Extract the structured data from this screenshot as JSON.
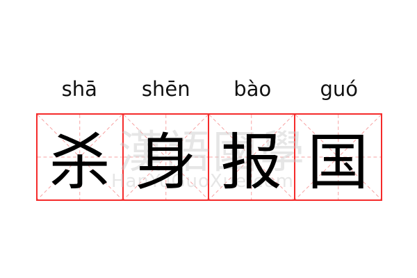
{
  "pinyin": [
    "shā",
    "shēn",
    "bào",
    "guó"
  ],
  "characters": [
    "杀",
    "身",
    "报",
    "国"
  ],
  "watermark": {
    "chinese": "漢語國學",
    "latin": "HanYuGuoXue.com"
  },
  "colors": {
    "grid": "#f52a2a",
    "guides": "#f7a0a0",
    "text": "#000000"
  }
}
